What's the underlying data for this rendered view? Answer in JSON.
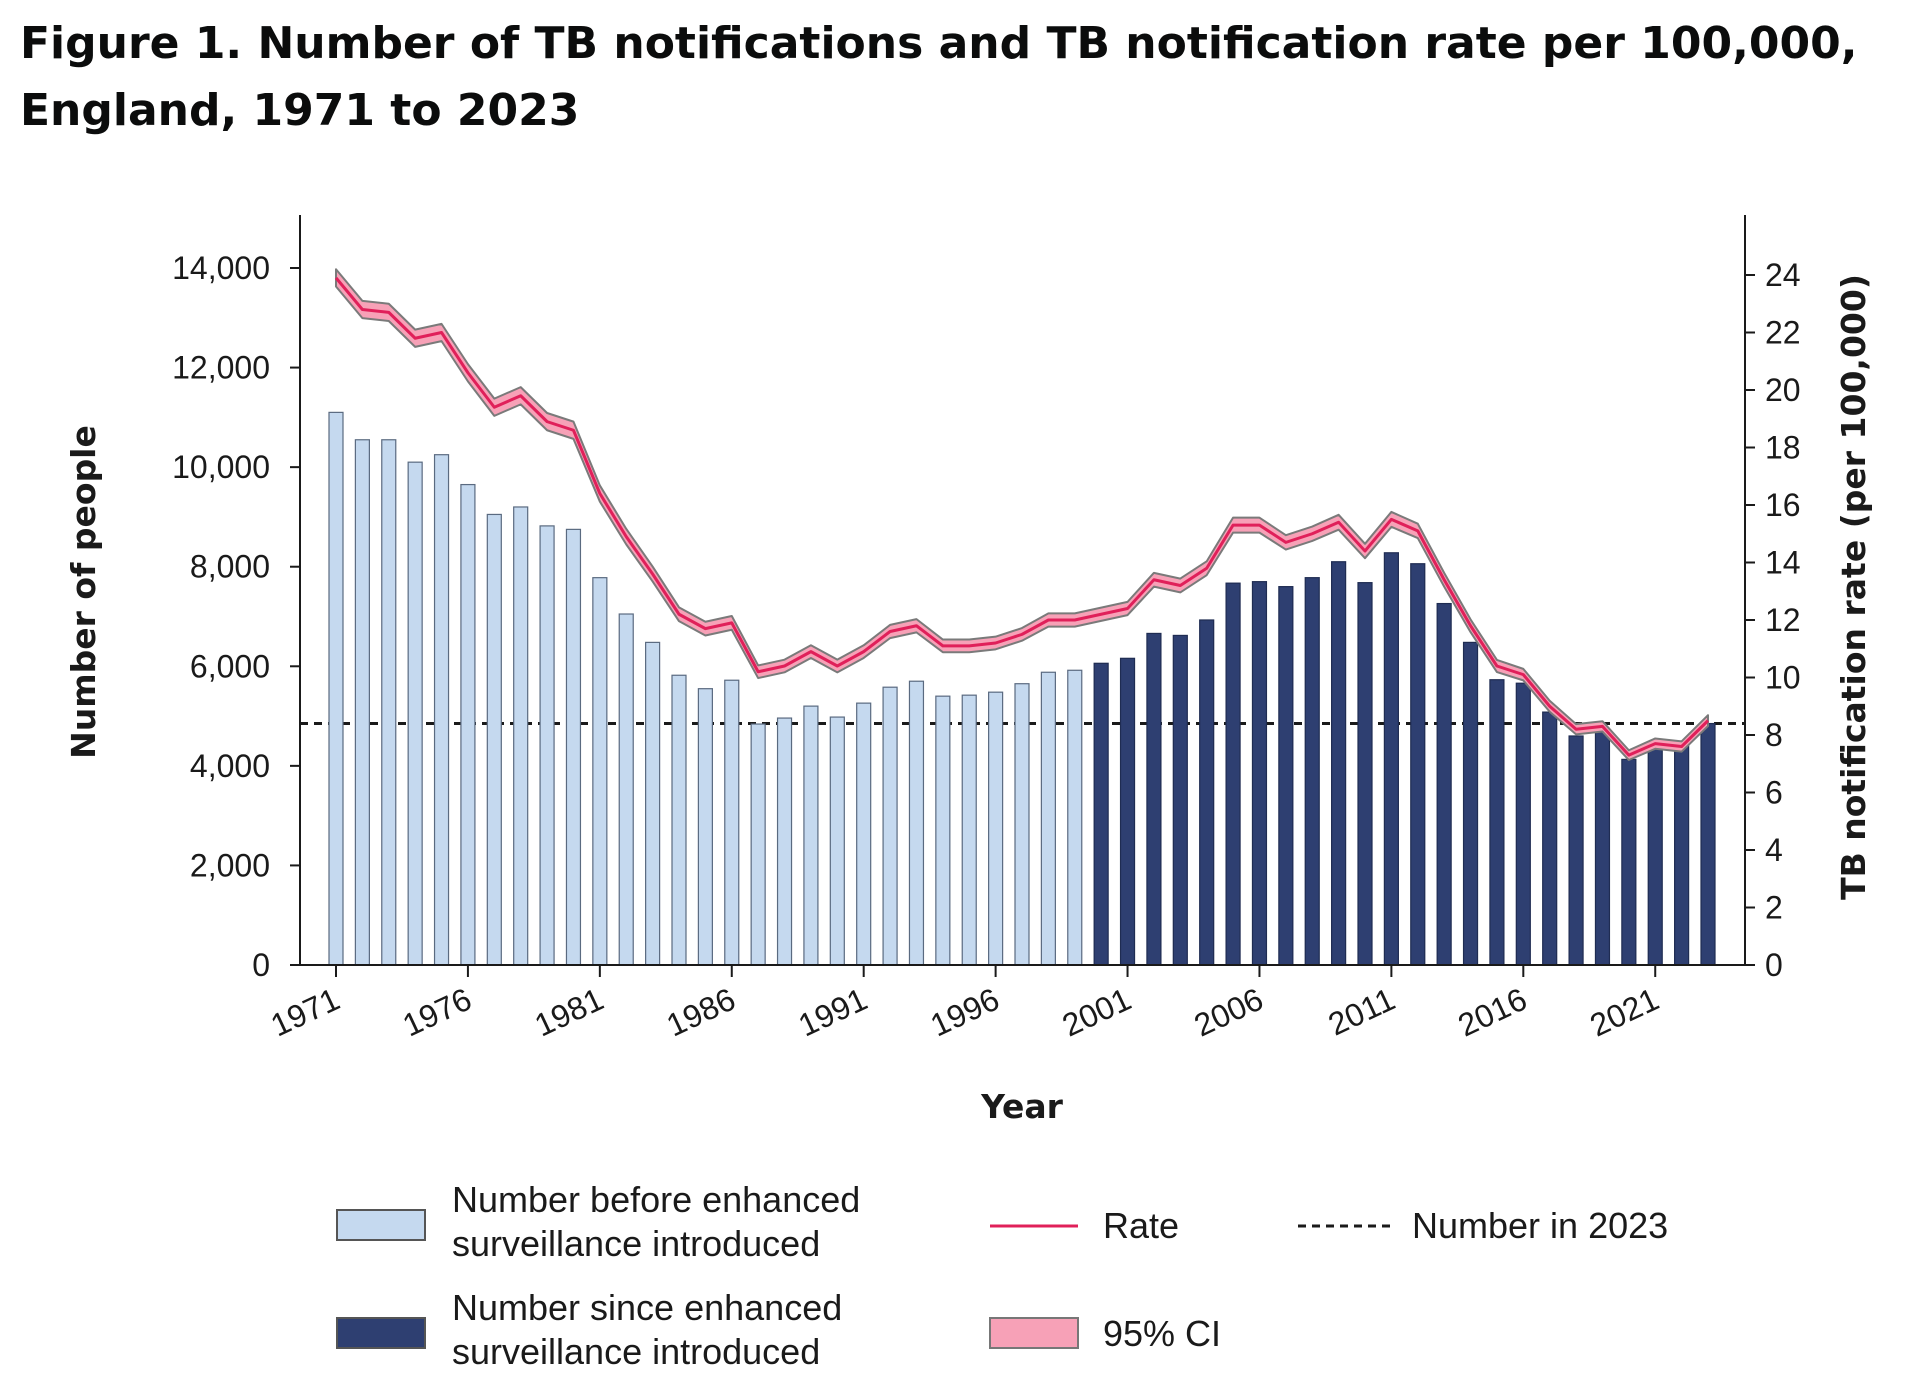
{
  "title": "Figure 1. Number of TB notifications and TB notification rate per 100,000, England, 1971 to 2023",
  "chart_data": {
    "type": "bar",
    "xlabel": "Year",
    "ylabel": "Number of people",
    "y2label": "TB notification rate (per 100,000)",
    "ylim": [
      0,
      15000
    ],
    "y2lim": [
      0,
      26
    ],
    "y_ticks": [
      "0",
      "2,000",
      "4,000",
      "6,000",
      "8,000",
      "10,000",
      "12,000",
      "14,000"
    ],
    "y2_ticks": [
      "0",
      "2",
      "4",
      "6",
      "8",
      "10",
      "12",
      "14",
      "16",
      "18",
      "20",
      "22",
      "24"
    ],
    "x_tick_labels": [
      "1971",
      "1976",
      "1981",
      "1986",
      "1991",
      "1996",
      "2001",
      "2006",
      "2011",
      "2016",
      "2021"
    ],
    "years": [
      1971,
      1972,
      1973,
      1974,
      1975,
      1976,
      1977,
      1978,
      1979,
      1980,
      1981,
      1982,
      1983,
      1984,
      1985,
      1986,
      1987,
      1988,
      1989,
      1990,
      1991,
      1992,
      1993,
      1994,
      1995,
      1996,
      1997,
      1998,
      1999,
      2000,
      2001,
      2002,
      2003,
      2004,
      2005,
      2006,
      2007,
      2008,
      2009,
      2010,
      2011,
      2012,
      2013,
      2014,
      2015,
      2016,
      2017,
      2018,
      2019,
      2020,
      2021,
      2022,
      2023
    ],
    "enhanced_surveillance_start": 2000,
    "series": [
      {
        "name": "Number",
        "kind": "bar",
        "values": [
          11100,
          10550,
          10550,
          10100,
          10250,
          9650,
          9050,
          9200,
          8820,
          8750,
          7780,
          7050,
          6480,
          5820,
          5550,
          5720,
          4840,
          4960,
          5200,
          4980,
          5260,
          5580,
          5700,
          5400,
          5420,
          5480,
          5650,
          5880,
          5920,
          6060,
          6160,
          6660,
          6620,
          6930,
          7670,
          7700,
          7600,
          7780,
          8100,
          7680,
          8280,
          8060,
          7260,
          6480,
          5730,
          5660,
          5080,
          4600,
          4750,
          4130,
          4400,
          4420,
          4850
        ],
        "color_before": "#c5d9ef",
        "color_since": "#2e3f71"
      },
      {
        "name": "Rate",
        "kind": "line",
        "axis": "right",
        "values": [
          23.9,
          22.8,
          22.7,
          21.8,
          22.0,
          20.6,
          19.4,
          19.8,
          18.9,
          18.6,
          16.4,
          14.9,
          13.6,
          12.2,
          11.7,
          11.9,
          10.2,
          10.4,
          10.9,
          10.4,
          10.9,
          11.6,
          11.8,
          11.1,
          11.1,
          11.2,
          11.5,
          12.0,
          12.0,
          12.2,
          12.4,
          13.4,
          13.2,
          13.8,
          15.3,
          15.3,
          14.7,
          15.0,
          15.4,
          14.4,
          15.5,
          15.1,
          13.4,
          11.8,
          10.4,
          10.1,
          9.0,
          8.2,
          8.3,
          7.3,
          7.7,
          7.6,
          8.5
        ],
        "ci_halfwidth": [
          0.3,
          0.3,
          0.3,
          0.3,
          0.3,
          0.3,
          0.3,
          0.3,
          0.3,
          0.3,
          0.28,
          0.27,
          0.26,
          0.24,
          0.24,
          0.24,
          0.22,
          0.22,
          0.22,
          0.22,
          0.22,
          0.23,
          0.23,
          0.22,
          0.22,
          0.22,
          0.22,
          0.23,
          0.23,
          0.23,
          0.23,
          0.24,
          0.24,
          0.24,
          0.26,
          0.26,
          0.25,
          0.25,
          0.26,
          0.25,
          0.26,
          0.25,
          0.24,
          0.22,
          0.21,
          0.2,
          0.19,
          0.18,
          0.18,
          0.17,
          0.18,
          0.18,
          0.19
        ],
        "color": "#e0205a",
        "ci_color": "#f7a1b7"
      },
      {
        "name": "Number in 2023",
        "kind": "reference_line",
        "value": 4850
      }
    ],
    "legend": {
      "placement": "bottom",
      "items": [
        {
          "label_line1": "Number before enhanced",
          "label_line2": "surveillance introduced",
          "swatch": "bar-before"
        },
        {
          "label_line1": "Rate",
          "swatch": "line"
        },
        {
          "label_line1": "Number in 2023",
          "swatch": "dashed"
        },
        {
          "label_line1": "Number since enhanced",
          "label_line2": "surveillance introduced",
          "swatch": "bar-since"
        },
        {
          "label_line1": "95% CI",
          "swatch": "ci"
        }
      ]
    },
    "grid": false
  }
}
